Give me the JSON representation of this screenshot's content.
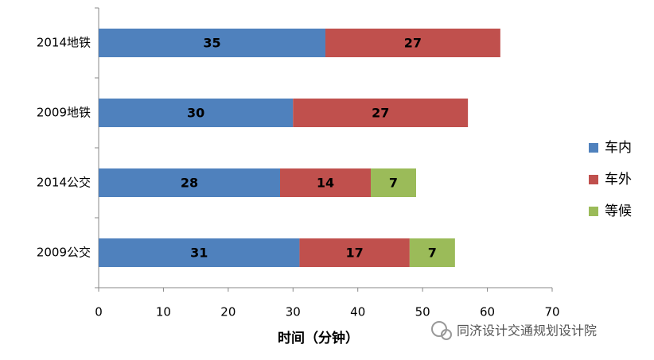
{
  "chart_data": {
    "type": "stacked-barh",
    "categories": [
      "2014地铁",
      "2009地铁",
      "2014公交",
      "2009公交"
    ],
    "series": [
      {
        "name": "车内",
        "color": "#4f81bd",
        "values": [
          35,
          30,
          28,
          31
        ]
      },
      {
        "name": "车外",
        "color": "#c0504d",
        "values": [
          27,
          27,
          14,
          17
        ]
      },
      {
        "name": "等候",
        "color": "#9bbb59",
        "values": [
          null,
          null,
          7,
          7
        ]
      }
    ],
    "xlabel": "时间（分钟）",
    "xlim": [
      0,
      70
    ],
    "xticks": [
      0,
      10,
      20,
      30,
      40,
      50,
      60,
      70
    ],
    "legend": "right",
    "watermark": "同济设计交通规划设计院"
  }
}
